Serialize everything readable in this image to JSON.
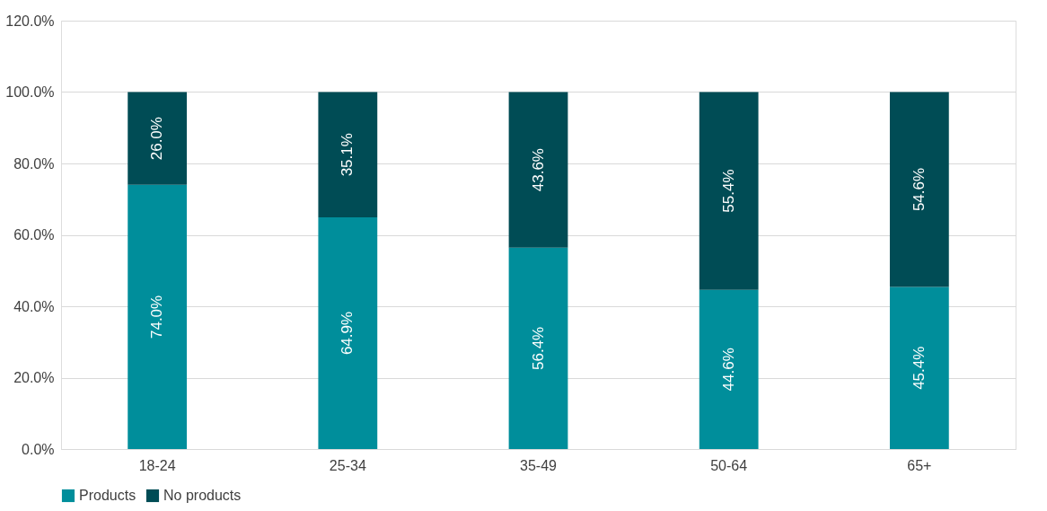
{
  "chart_data": {
    "type": "bar",
    "stacked": true,
    "categories": [
      "18-24",
      "25-34",
      "35-49",
      "50-64",
      "65+"
    ],
    "series": [
      {
        "name": "Products",
        "color": "#008e9b",
        "values": [
          74.0,
          64.9,
          56.4,
          44.6,
          45.4
        ],
        "value_labels": [
          "74.0%",
          "64.9%",
          "56.4%",
          "44.6%",
          "45.4%"
        ]
      },
      {
        "name": "No products",
        "color": "#004c55",
        "values": [
          26.0,
          35.1,
          43.6,
          55.4,
          54.6
        ],
        "value_labels": [
          "26.0%",
          "35.1%",
          "43.6%",
          "55.4%",
          "54.6%"
        ]
      }
    ],
    "ylim": [
      0,
      120
    ],
    "yticks": [
      {
        "value": 0,
        "label": "0.0%"
      },
      {
        "value": 20,
        "label": "20.0%"
      },
      {
        "value": 40,
        "label": "40.0%"
      },
      {
        "value": 60,
        "label": "60.0%"
      },
      {
        "value": 80,
        "label": "80.0%"
      },
      {
        "value": 100,
        "label": "100.0%"
      },
      {
        "value": 120,
        "label": "120.0%"
      }
    ],
    "grid": "y",
    "legend": "bottom"
  }
}
